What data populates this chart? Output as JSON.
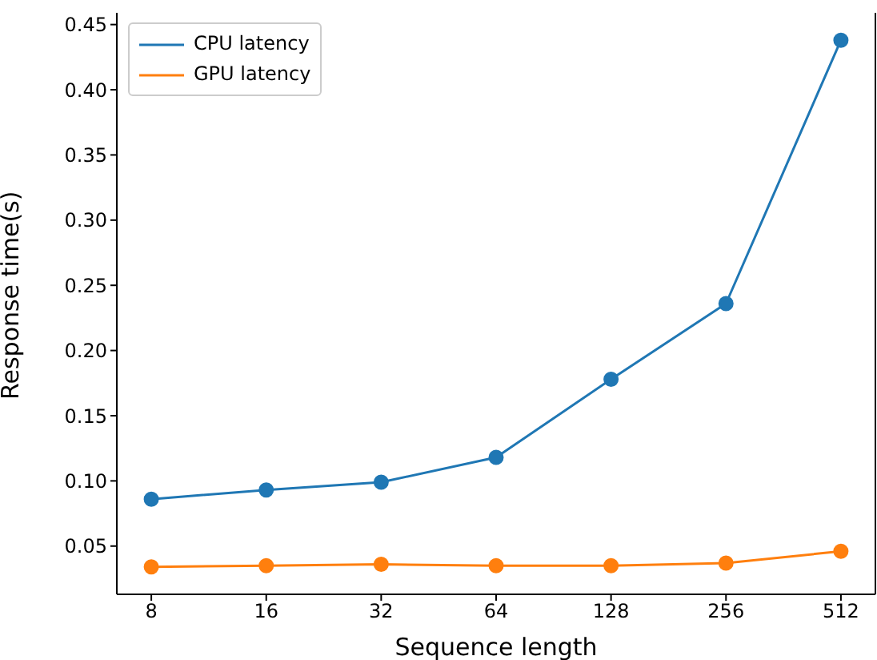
{
  "chart_data": {
    "type": "line",
    "xlabel": "Sequence length",
    "ylabel": "Response time(s)",
    "categories": [
      "8",
      "16",
      "32",
      "64",
      "128",
      "256",
      "512"
    ],
    "series": [
      {
        "name": "CPU latency",
        "color": "#1f77b4",
        "values": [
          0.086,
          0.093,
          0.099,
          0.118,
          0.178,
          0.236,
          0.438
        ]
      },
      {
        "name": "GPU latency",
        "color": "#ff7f0e",
        "values": [
          0.034,
          0.035,
          0.036,
          0.035,
          0.035,
          0.037,
          0.046
        ]
      }
    ],
    "ylim": [
      0.013,
      0.459
    ],
    "yticks": [
      {
        "value": 0.05,
        "label": "0.05"
      },
      {
        "value": 0.1,
        "label": "0.10"
      },
      {
        "value": 0.15,
        "label": "0.15"
      },
      {
        "value": 0.2,
        "label": "0.20"
      },
      {
        "value": 0.25,
        "label": "0.25"
      },
      {
        "value": 0.3,
        "label": "0.30"
      },
      {
        "value": 0.35,
        "label": "0.35"
      },
      {
        "value": 0.4,
        "label": "0.40"
      },
      {
        "value": 0.45,
        "label": "0.45"
      }
    ],
    "grid": false,
    "legend": "top left",
    "marker": "circle",
    "line_style": "solid"
  }
}
